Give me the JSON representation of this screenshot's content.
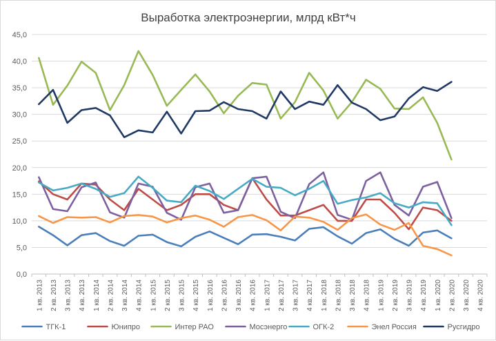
{
  "chart_data": {
    "type": "line",
    "title": "Выработка электроэнергии, млрд кВт*ч",
    "xlabel": "",
    "ylabel": "",
    "ylim": [
      0,
      45
    ],
    "yticks": [
      "0,0",
      "5,0",
      "10,0",
      "15,0",
      "20,0",
      "25,0",
      "30,0",
      "35,0",
      "40,0",
      "45,0"
    ],
    "grid": true,
    "legend_position": "bottom",
    "categories": [
      "1 кв. 2013",
      "2 кв. 2013",
      "3 кв. 2013",
      "4 кв. 2013",
      "1 кв. 2014",
      "2 кв. 2014",
      "3 кв. 2014",
      "4 кв. 2014",
      "1 кв. 2015",
      "2 кв. 2015",
      "3 кв. 2015",
      "4 кв. 2015",
      "1 кв. 2016",
      "2 кв. 2016",
      "3 кв. 2016",
      "4 кв. 2016",
      "1 кв. 2017",
      "2 кв. 2017",
      "3 кв. 2017",
      "4 кв. 2017",
      "1 кв. 2018",
      "2 кв. 2018",
      "3 кв. 2018",
      "4 кв. 2018",
      "1 кв. 2019",
      "2 кв. 2019",
      "3 кв. 2019",
      "4 кв. 2019",
      "1 кв. 2020",
      "2 кв. 2020",
      "3 кв. 2020",
      "4 кв. 2020"
    ],
    "series": [
      {
        "name": "ТГК-1",
        "color": "#4a7ebb",
        "values": [
          8.9,
          7.3,
          5.4,
          7.3,
          7.7,
          6.2,
          5.3,
          7.2,
          7.4,
          6.0,
          5.2,
          7.0,
          8.0,
          6.8,
          5.6,
          7.4,
          7.5,
          7.0,
          6.3,
          8.5,
          8.8,
          7.1,
          5.7,
          7.7,
          8.4,
          6.6,
          5.3,
          7.8,
          8.2,
          6.7,
          null,
          null
        ]
      },
      {
        "name": "Юнипро",
        "color": "#be4b48",
        "values": [
          17.4,
          15.0,
          14.0,
          17.0,
          16.8,
          14.0,
          12.0,
          16.0,
          14.0,
          12.0,
          13.0,
          15.0,
          15.0,
          13.0,
          12.0,
          18.0,
          14.0,
          11.0,
          11.0,
          12.0,
          13.0,
          10.0,
          10.0,
          14.0,
          14.0,
          11.5,
          8.4,
          12.5,
          12.0,
          10.0,
          null,
          null
        ]
      },
      {
        "name": "Интер РАО",
        "color": "#98b954",
        "values": [
          40.6,
          31.8,
          35.4,
          39.9,
          37.8,
          30.8,
          35.5,
          41.9,
          37.4,
          31.6,
          34.6,
          37.5,
          34.3,
          30.2,
          33.5,
          35.9,
          35.6,
          29.2,
          32.3,
          37.8,
          34.5,
          29.2,
          32.3,
          36.5,
          34.8,
          31.1,
          31.0,
          33.2,
          28.4,
          21.5,
          null,
          null
        ]
      },
      {
        "name": "Мосэнерго",
        "color": "#7d60a0",
        "values": [
          18.2,
          12.2,
          11.8,
          16.3,
          17.2,
          11.6,
          10.6,
          17.0,
          16.4,
          11.5,
          10.2,
          16.3,
          17.0,
          11.5,
          12.0,
          18.0,
          18.3,
          11.7,
          10.5,
          16.9,
          19.1,
          11.1,
          10.2,
          17.5,
          19.1,
          13.0,
          11.0,
          16.4,
          17.3,
          10.5,
          null,
          null
        ]
      },
      {
        "name": "ОГК-2",
        "color": "#46aac5",
        "values": [
          17.2,
          15.7,
          16.2,
          17.0,
          16.0,
          14.5,
          15.2,
          18.3,
          16.2,
          13.8,
          13.5,
          16.6,
          15.6,
          14.1,
          16.0,
          17.9,
          16.4,
          16.2,
          14.8,
          16.0,
          17.5,
          13.2,
          13.9,
          14.4,
          15.2,
          13.3,
          12.5,
          13.5,
          13.3,
          9.2,
          null,
          null
        ]
      },
      {
        "name": "Энел Россия",
        "color": "#f79646",
        "values": [
          10.9,
          9.6,
          10.7,
          10.6,
          10.7,
          9.7,
          10.9,
          11.1,
          10.8,
          9.7,
          10.5,
          11.0,
          10.2,
          8.9,
          10.7,
          11.1,
          10.1,
          8.2,
          10.8,
          10.6,
          9.8,
          8.3,
          10.5,
          11.2,
          9.3,
          8.3,
          9.6,
          5.3,
          4.7,
          3.5,
          null,
          null
        ]
      },
      {
        "name": "Русгидро",
        "color": "#1f3864",
        "values": [
          31.9,
          34.6,
          28.4,
          30.8,
          31.2,
          29.8,
          25.7,
          27.0,
          26.6,
          30.5,
          26.4,
          30.6,
          30.7,
          32.3,
          31.0,
          30.6,
          29.2,
          34.3,
          31.0,
          32.4,
          31.8,
          35.5,
          32.2,
          31.0,
          28.9,
          29.6,
          33.0,
          35.1,
          34.4,
          36.1,
          null,
          null
        ]
      }
    ]
  }
}
